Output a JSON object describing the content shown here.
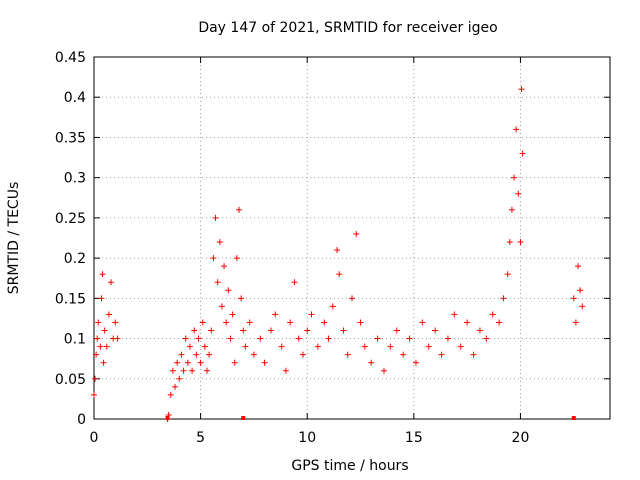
{
  "chart_data": {
    "type": "scatter",
    "title": "Day 147 of 2021, SRMTID for receiver igeo",
    "xlabel": "GPS time / hours",
    "ylabel": "SRMTID / TECUs",
    "xlim": [
      0,
      24.2
    ],
    "ylim": [
      0,
      0.45
    ],
    "x_ticks": [
      0,
      5,
      10,
      15,
      20
    ],
    "x_tick_labels": [
      "0",
      "5",
      "10",
      "15",
      "20"
    ],
    "y_ticks": [
      0,
      0.05,
      0.1,
      0.15,
      0.2,
      0.25,
      0.3,
      0.35,
      0.4,
      0.45
    ],
    "y_tick_labels": [
      "0",
      "0.05",
      "0.1",
      "0.15",
      "0.2",
      "0.25",
      "0.3",
      "0.35",
      "0.4",
      "0.45"
    ],
    "grid": true,
    "marker": "+",
    "color": "#ff0000",
    "series": [
      {
        "name": "SRMTID",
        "x": [
          0.0,
          0.05,
          0.1,
          0.15,
          0.2,
          0.3,
          0.35,
          0.4,
          0.45,
          0.5,
          0.6,
          0.7,
          0.8,
          0.9,
          1.0,
          1.1,
          3.45,
          3.5,
          3.6,
          3.7,
          3.8,
          3.9,
          4.0,
          4.1,
          4.2,
          4.3,
          4.4,
          4.5,
          4.6,
          4.7,
          4.8,
          4.9,
          5.0,
          5.1,
          5.2,
          5.3,
          5.4,
          5.5,
          5.6,
          5.7,
          5.8,
          5.9,
          6.0,
          6.1,
          6.2,
          6.3,
          6.4,
          6.5,
          6.6,
          6.7,
          6.8,
          6.9,
          7.0,
          7.1,
          7.3,
          7.5,
          7.8,
          8.0,
          8.3,
          8.5,
          8.8,
          9.0,
          9.2,
          9.4,
          9.6,
          9.8,
          10.0,
          10.2,
          10.5,
          10.8,
          11.0,
          11.2,
          11.4,
          11.5,
          11.7,
          11.9,
          12.1,
          12.3,
          12.5,
          12.7,
          13.0,
          13.3,
          13.6,
          13.9,
          14.2,
          14.5,
          14.8,
          15.1,
          15.4,
          15.7,
          16.0,
          16.3,
          16.6,
          16.9,
          17.2,
          17.5,
          17.8,
          18.1,
          18.4,
          18.7,
          19.0,
          19.2,
          19.4,
          19.5,
          19.6,
          19.7,
          19.8,
          19.9,
          20.0,
          20.05,
          20.1,
          22.5,
          22.6,
          22.7,
          22.8,
          22.9
        ],
        "y": [
          0.03,
          0.05,
          0.08,
          0.1,
          0.12,
          0.09,
          0.15,
          0.18,
          0.07,
          0.11,
          0.09,
          0.13,
          0.17,
          0.1,
          0.12,
          0.1,
          0.0,
          0.005,
          0.03,
          0.06,
          0.04,
          0.07,
          0.05,
          0.08,
          0.06,
          0.1,
          0.07,
          0.09,
          0.06,
          0.11,
          0.08,
          0.1,
          0.07,
          0.12,
          0.09,
          0.06,
          0.08,
          0.11,
          0.2,
          0.25,
          0.17,
          0.22,
          0.14,
          0.19,
          0.12,
          0.16,
          0.1,
          0.13,
          0.07,
          0.2,
          0.26,
          0.15,
          0.11,
          0.09,
          0.12,
          0.08,
          0.1,
          0.07,
          0.11,
          0.13,
          0.09,
          0.06,
          0.12,
          0.17,
          0.1,
          0.08,
          0.11,
          0.13,
          0.09,
          0.12,
          0.1,
          0.14,
          0.21,
          0.18,
          0.11,
          0.08,
          0.15,
          0.23,
          0.12,
          0.09,
          0.07,
          0.1,
          0.06,
          0.09,
          0.11,
          0.08,
          0.1,
          0.07,
          0.12,
          0.09,
          0.11,
          0.08,
          0.1,
          0.13,
          0.09,
          0.12,
          0.08,
          0.11,
          0.1,
          0.13,
          0.12,
          0.15,
          0.18,
          0.22,
          0.26,
          0.3,
          0.36,
          0.28,
          0.22,
          0.41,
          0.33,
          0.15,
          0.12,
          0.19,
          0.16,
          0.14
        ],
        "zero_markers_x": [
          3.45,
          7.0,
          22.5
        ]
      }
    ]
  }
}
